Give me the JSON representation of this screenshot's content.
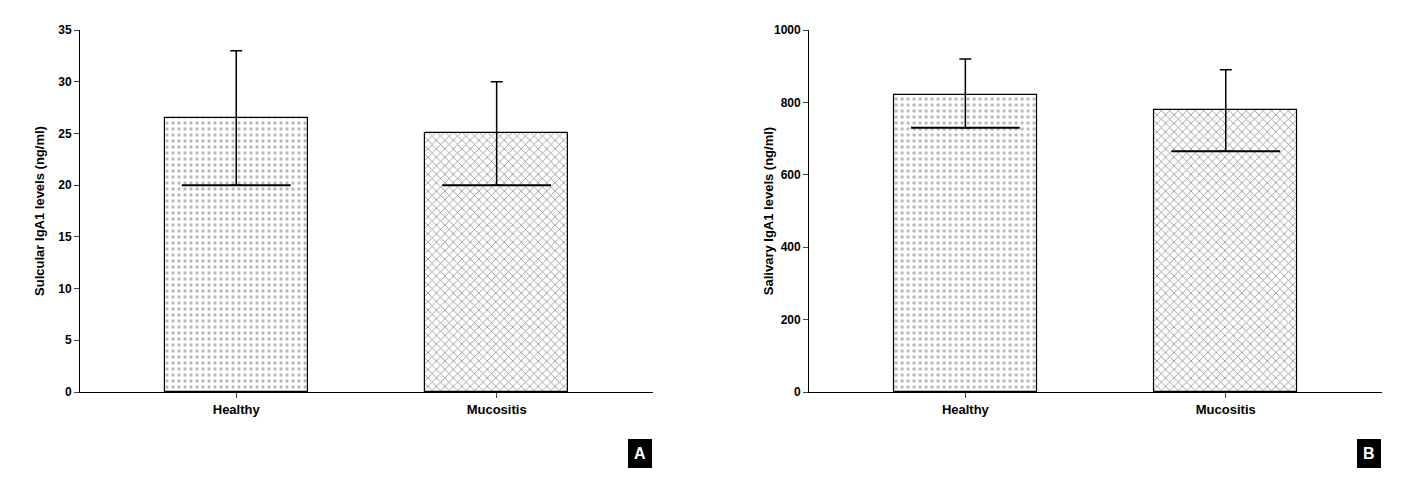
{
  "chart_data": [
    {
      "type": "bar",
      "categories": [
        "Healthy",
        "Mucositis"
      ],
      "values": [
        26.5,
        25.0
      ],
      "error_upper": [
        6.5,
        5.0
      ],
      "error_lower": [
        6.5,
        5.0
      ],
      "medians": [
        20.0,
        20.0
      ],
      "colors": [
        "#b8b8b8",
        "#909090"
      ],
      "ylabel": "Sulcular IgA1 levels (ng/ml)",
      "ylim": [
        0,
        35
      ],
      "yticks": [
        0,
        5,
        10,
        15,
        20,
        25,
        30,
        35
      ],
      "grid": false,
      "annotations": [
        "A"
      ]
    },
    {
      "type": "bar",
      "categories": [
        "Healthy",
        "Mucositis"
      ],
      "values": [
        820,
        780
      ],
      "error_upper": [
        100,
        110
      ],
      "error_lower": [
        90,
        115
      ],
      "medians": [
        730,
        665
      ],
      "colors": [
        "#b8b8b8",
        "#909090"
      ],
      "ylabel": "Salivary IgA1 levels (ng/ml)",
      "ylim": [
        0,
        1000
      ],
      "yticks": [
        0,
        200,
        400,
        600,
        800,
        1000
      ],
      "grid": false,
      "annotations": [
        "B"
      ]
    }
  ]
}
